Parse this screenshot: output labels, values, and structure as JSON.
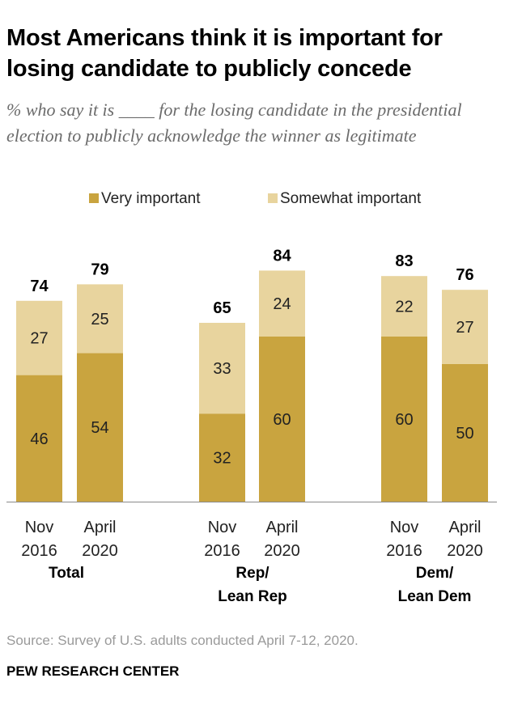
{
  "title": "Most Americans think it is important for losing candidate to publicly concede",
  "subtitle": "% who say it is ____ for the losing candidate in the presidential election to publicly acknowledge the winner as legitimate",
  "source": "Source: Survey of U.S. adults conducted April 7-12, 2020.",
  "brand": "PEW RESEARCH CENTER",
  "colors": {
    "very_important": "#c9a43f",
    "somewhat_important": "#e8d49e"
  },
  "chart_data": {
    "type": "bar",
    "stacked": true,
    "legend_position": "top",
    "grid": false,
    "groups": [
      {
        "label": [
          "Total"
        ],
        "bars": [
          {
            "label": [
              "Nov",
              "2016"
            ],
            "total": 74
          },
          {
            "label": [
              "April",
              "2020"
            ],
            "total": 79
          }
        ]
      },
      {
        "label": [
          "Rep/",
          "Lean Rep"
        ],
        "bars": [
          {
            "label": [
              "Nov",
              "2016"
            ],
            "total": 65
          },
          {
            "label": [
              "April",
              "2020"
            ],
            "total": 84
          }
        ]
      },
      {
        "label": [
          "Dem/",
          "Lean Dem"
        ],
        "bars": [
          {
            "label": [
              "Nov",
              "2016"
            ],
            "total": 83
          },
          {
            "label": [
              "April",
              "2020"
            ],
            "total": 76
          }
        ]
      }
    ],
    "series": [
      {
        "name": "Very important",
        "values": [
          46,
          54,
          32,
          60,
          60,
          50
        ]
      },
      {
        "name": "Somewhat important",
        "values": [
          27,
          25,
          33,
          24,
          22,
          27
        ]
      }
    ],
    "ylim": [
      0,
      100
    ]
  }
}
